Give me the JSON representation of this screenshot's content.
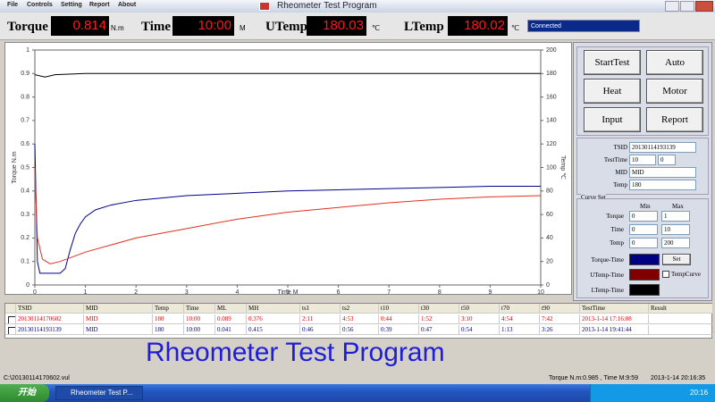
{
  "menu": [
    "File",
    "Controls",
    "Setting",
    "Report",
    "About"
  ],
  "window_title": "Rheometer Test Program",
  "readouts": [
    {
      "label": "Torque",
      "value": "0.814",
      "unit": "N.m"
    },
    {
      "label": "Time",
      "value": "10:00",
      "unit": "M"
    },
    {
      "label": "UTemp",
      "value": "180.03",
      "unit": "℃"
    },
    {
      "label": "LTemp",
      "value": "180.02",
      "unit": "℃"
    }
  ],
  "status": "Connected",
  "chart_data": {
    "type": "line",
    "x_label": "Time M",
    "y_label": "Torque N.m",
    "y2_label": "Temp ℃",
    "xlim": [
      0,
      10
    ],
    "xticks": [
      0,
      1,
      2,
      3,
      4,
      5,
      6,
      7,
      8,
      9,
      10
    ],
    "ylim": [
      0,
      1
    ],
    "yticks": [
      0,
      0.1,
      0.2,
      0.3,
      0.4,
      0.5,
      0.6,
      0.7,
      0.8,
      0.9,
      1
    ],
    "y2lim": [
      0,
      200
    ],
    "y2ticks": [
      0,
      20,
      40,
      60,
      80,
      100,
      120,
      140,
      160,
      180,
      200
    ],
    "series": [
      {
        "color": "#00008b",
        "x": [
          0,
          0.05,
          0.1,
          0.3,
          0.5,
          0.6,
          0.7,
          0.8,
          0.9,
          1,
          1.2,
          1.5,
          2,
          3,
          4,
          5,
          6,
          7,
          8,
          9,
          10
        ],
        "values": [
          0.6,
          0.1,
          0.05,
          0.05,
          0.05,
          0.07,
          0.15,
          0.22,
          0.26,
          0.29,
          0.32,
          0.34,
          0.36,
          0.38,
          0.39,
          0.4,
          0.405,
          0.41,
          0.415,
          0.42,
          0.42
        ]
      },
      {
        "color": "#e03020",
        "x": [
          0,
          0.05,
          0.15,
          0.3,
          0.5,
          1,
          1.5,
          2,
          3,
          4,
          5,
          6,
          7,
          8,
          9,
          10
        ],
        "values": [
          0.5,
          0.2,
          0.11,
          0.09,
          0.1,
          0.14,
          0.17,
          0.2,
          0.24,
          0.28,
          0.31,
          0.33,
          0.35,
          0.365,
          0.375,
          0.38
        ]
      },
      {
        "color": "#000000",
        "axis": "y2",
        "x": [
          0,
          0.2,
          0.4,
          1,
          10
        ],
        "values": [
          179,
          177,
          179,
          180,
          180
        ]
      }
    ]
  },
  "panel": {
    "buttons": [
      "StartTest",
      "Auto",
      "Heat",
      "Motor",
      "Input",
      "Report"
    ],
    "fields": [
      {
        "label": "TSID",
        "value": "20130114193139"
      },
      {
        "label": "TestTime",
        "value": "10",
        "value2": "0"
      },
      {
        "label": "MID",
        "value": "MID"
      },
      {
        "label": "Temp",
        "value": "180"
      }
    ],
    "curve_set": {
      "title": "Curve Set",
      "min_label": "Min",
      "max_label": "Max",
      "rows": [
        {
          "label": "Torque",
          "min": "0",
          "max": "1"
        },
        {
          "label": "Time",
          "min": "0",
          "max": "10"
        },
        {
          "label": "Temp",
          "min": "0",
          "max": "200"
        }
      ]
    },
    "curves": [
      {
        "label": "Torque-Time",
        "color": "#000080"
      },
      {
        "label": "UTemp-Time",
        "color": "#800000"
      },
      {
        "label": "LTemp-Time",
        "color": "#000000"
      }
    ],
    "set_button": "Set",
    "temp_curve": "TempCurve"
  },
  "table": {
    "columns": [
      "TSID",
      "MID",
      "Temp",
      "Time",
      "ML",
      "MH",
      "ts1",
      "ts2",
      "t10",
      "t30",
      "t50",
      "t70",
      "t90",
      "TestTime",
      "Result"
    ],
    "row_colors": [
      "#e00000",
      "#000080"
    ],
    "rows": [
      [
        "20130114170602",
        "MID",
        "180",
        "10:00",
        "0.089",
        "0.376",
        "2:11",
        "4:53",
        "0:44",
        "1:52",
        "3:10",
        "4:54",
        "7:42",
        "2013-1-14 17:16:08"
      ],
      [
        "20130114193139",
        "MID",
        "180",
        "10:00",
        "0.041",
        "0.415",
        "0:46",
        "0:56",
        "0:39",
        "0:47",
        "0:54",
        "1:13",
        "3:26",
        "2013-1-14 19:41:44"
      ]
    ]
  },
  "banner": "Rheometer Test Program",
  "statusbar": {
    "file": "C:\\20130114170602.vul",
    "reading": "Torque N.m:0.985 , Time M:9:59",
    "datetime": "2013-1-14 20:16:35"
  },
  "taskbar": {
    "start": "开始",
    "task": "Rheometer Test P...",
    "clock": "20:16"
  }
}
